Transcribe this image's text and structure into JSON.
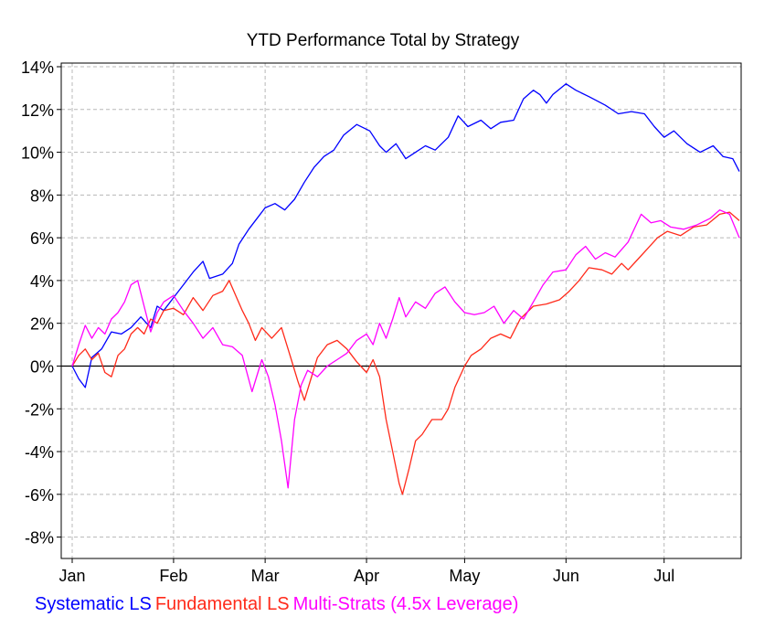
{
  "chart_data": {
    "type": "line",
    "title": "YTD Performance Total by Strategy",
    "xlabel": "",
    "ylabel": "",
    "x_domain": [
      "2019-01-01",
      "2019-07-24"
    ],
    "ylim": [
      -9,
      14
    ],
    "y_ticks": [
      14,
      12,
      10,
      8,
      6,
      4,
      2,
      0,
      -2,
      -4,
      -6,
      -8
    ],
    "y_tick_labels": [
      "14%",
      "12%",
      "10%",
      "8%",
      "6%",
      "4%",
      "2%",
      "0%",
      "-2%",
      "-4%",
      "-6%",
      "-8%"
    ],
    "x_ticks": [
      "2019-01-01",
      "2019-02-01",
      "2019-03-01",
      "2019-04-01",
      "2019-05-01",
      "2019-06-01",
      "2019-07-01"
    ],
    "x_tick_labels": [
      "Jan",
      "Feb",
      "Mar",
      "Apr",
      "May",
      "Jun",
      "Jul"
    ],
    "grid": true,
    "zero_line": true,
    "legend_position": "bottom-left",
    "series": [
      {
        "name": "Systematic LS",
        "color": "#0000ff",
        "points": [
          [
            "2019-01-01",
            0.0
          ],
          [
            "2019-01-03",
            -0.6
          ],
          [
            "2019-01-05",
            -1.0
          ],
          [
            "2019-01-07",
            0.4
          ],
          [
            "2019-01-10",
            0.8
          ],
          [
            "2019-01-13",
            1.6
          ],
          [
            "2019-01-16",
            1.5
          ],
          [
            "2019-01-19",
            1.8
          ],
          [
            "2019-01-22",
            2.3
          ],
          [
            "2019-01-25",
            1.8
          ],
          [
            "2019-01-27",
            2.8
          ],
          [
            "2019-01-29",
            2.6
          ],
          [
            "2019-02-01",
            3.2
          ],
          [
            "2019-02-04",
            3.8
          ],
          [
            "2019-02-07",
            4.4
          ],
          [
            "2019-02-10",
            4.9
          ],
          [
            "2019-02-12",
            4.1
          ],
          [
            "2019-02-16",
            4.3
          ],
          [
            "2019-02-19",
            4.8
          ],
          [
            "2019-02-21",
            5.7
          ],
          [
            "2019-02-24",
            6.4
          ],
          [
            "2019-02-27",
            7.0
          ],
          [
            "2019-03-01",
            7.4
          ],
          [
            "2019-03-04",
            7.6
          ],
          [
            "2019-03-07",
            7.3
          ],
          [
            "2019-03-10",
            7.8
          ],
          [
            "2019-03-13",
            8.6
          ],
          [
            "2019-03-16",
            9.3
          ],
          [
            "2019-03-19",
            9.8
          ],
          [
            "2019-03-22",
            10.1
          ],
          [
            "2019-03-25",
            10.8
          ],
          [
            "2019-03-29",
            11.3
          ],
          [
            "2019-04-02",
            11.0
          ],
          [
            "2019-04-05",
            10.3
          ],
          [
            "2019-04-07",
            10.0
          ],
          [
            "2019-04-10",
            10.4
          ],
          [
            "2019-04-13",
            9.7
          ],
          [
            "2019-04-16",
            10.0
          ],
          [
            "2019-04-19",
            10.3
          ],
          [
            "2019-04-22",
            10.1
          ],
          [
            "2019-04-26",
            10.7
          ],
          [
            "2019-04-29",
            11.7
          ],
          [
            "2019-05-02",
            11.2
          ],
          [
            "2019-05-06",
            11.5
          ],
          [
            "2019-05-09",
            11.1
          ],
          [
            "2019-05-12",
            11.4
          ],
          [
            "2019-05-16",
            11.5
          ],
          [
            "2019-05-19",
            12.5
          ],
          [
            "2019-05-22",
            12.9
          ],
          [
            "2019-05-24",
            12.7
          ],
          [
            "2019-05-26",
            12.3
          ],
          [
            "2019-05-28",
            12.7
          ],
          [
            "2019-06-01",
            13.2
          ],
          [
            "2019-06-04",
            12.9
          ],
          [
            "2019-06-08",
            12.6
          ],
          [
            "2019-06-13",
            12.2
          ],
          [
            "2019-06-17",
            11.8
          ],
          [
            "2019-06-21",
            11.9
          ],
          [
            "2019-06-25",
            11.8
          ],
          [
            "2019-06-28",
            11.2
          ],
          [
            "2019-07-01",
            10.7
          ],
          [
            "2019-07-04",
            11.0
          ],
          [
            "2019-07-08",
            10.4
          ],
          [
            "2019-07-12",
            10.0
          ],
          [
            "2019-07-16",
            10.3
          ],
          [
            "2019-07-19",
            9.8
          ],
          [
            "2019-07-22",
            9.7
          ],
          [
            "2019-07-24",
            9.1
          ]
        ]
      },
      {
        "name": "Fundamental LS",
        "color": "#ff2a1a",
        "points": [
          [
            "2019-01-01",
            0.0
          ],
          [
            "2019-01-03",
            0.5
          ],
          [
            "2019-01-05",
            0.8
          ],
          [
            "2019-01-07",
            0.3
          ],
          [
            "2019-01-09",
            0.6
          ],
          [
            "2019-01-11",
            -0.3
          ],
          [
            "2019-01-13",
            -0.5
          ],
          [
            "2019-01-15",
            0.5
          ],
          [
            "2019-01-17",
            0.8
          ],
          [
            "2019-01-19",
            1.5
          ],
          [
            "2019-01-21",
            1.8
          ],
          [
            "2019-01-23",
            1.5
          ],
          [
            "2019-01-25",
            2.2
          ],
          [
            "2019-01-27",
            2.0
          ],
          [
            "2019-01-29",
            2.6
          ],
          [
            "2019-02-01",
            2.7
          ],
          [
            "2019-02-04",
            2.4
          ],
          [
            "2019-02-07",
            3.2
          ],
          [
            "2019-02-10",
            2.6
          ],
          [
            "2019-02-13",
            3.3
          ],
          [
            "2019-02-16",
            3.5
          ],
          [
            "2019-02-18",
            4.0
          ],
          [
            "2019-02-20",
            3.3
          ],
          [
            "2019-02-22",
            2.6
          ],
          [
            "2019-02-24",
            2.0
          ],
          [
            "2019-02-26",
            1.2
          ],
          [
            "2019-02-28",
            1.8
          ],
          [
            "2019-03-03",
            1.3
          ],
          [
            "2019-03-06",
            1.8
          ],
          [
            "2019-03-09",
            0.3
          ],
          [
            "2019-03-11",
            -0.7
          ],
          [
            "2019-03-13",
            -1.6
          ],
          [
            "2019-03-15",
            -0.6
          ],
          [
            "2019-03-17",
            0.4
          ],
          [
            "2019-03-20",
            1.0
          ],
          [
            "2019-03-23",
            1.2
          ],
          [
            "2019-03-26",
            0.8
          ],
          [
            "2019-03-29",
            0.2
          ],
          [
            "2019-04-01",
            -0.3
          ],
          [
            "2019-04-03",
            0.3
          ],
          [
            "2019-04-05",
            -0.5
          ],
          [
            "2019-04-07",
            -2.5
          ],
          [
            "2019-04-09",
            -4.0
          ],
          [
            "2019-04-11",
            -5.5
          ],
          [
            "2019-04-12",
            -6.0
          ],
          [
            "2019-04-14",
            -4.8
          ],
          [
            "2019-04-16",
            -3.5
          ],
          [
            "2019-04-18",
            -3.2
          ],
          [
            "2019-04-21",
            -2.5
          ],
          [
            "2019-04-24",
            -2.5
          ],
          [
            "2019-04-26",
            -2.0
          ],
          [
            "2019-04-28",
            -1.0
          ],
          [
            "2019-05-01",
            0.0
          ],
          [
            "2019-05-03",
            0.5
          ],
          [
            "2019-05-06",
            0.8
          ],
          [
            "2019-05-09",
            1.3
          ],
          [
            "2019-05-12",
            1.5
          ],
          [
            "2019-05-15",
            1.3
          ],
          [
            "2019-05-18",
            2.2
          ],
          [
            "2019-05-22",
            2.8
          ],
          [
            "2019-05-26",
            2.9
          ],
          [
            "2019-05-30",
            3.1
          ],
          [
            "2019-06-02",
            3.5
          ],
          [
            "2019-06-05",
            4.0
          ],
          [
            "2019-06-08",
            4.6
          ],
          [
            "2019-06-12",
            4.5
          ],
          [
            "2019-06-15",
            4.3
          ],
          [
            "2019-06-18",
            4.8
          ],
          [
            "2019-06-20",
            4.5
          ],
          [
            "2019-06-23",
            5.0
          ],
          [
            "2019-06-26",
            5.5
          ],
          [
            "2019-06-29",
            6.0
          ],
          [
            "2019-07-02",
            6.3
          ],
          [
            "2019-07-06",
            6.1
          ],
          [
            "2019-07-10",
            6.5
          ],
          [
            "2019-07-14",
            6.6
          ],
          [
            "2019-07-18",
            7.1
          ],
          [
            "2019-07-21",
            7.2
          ],
          [
            "2019-07-24",
            6.8
          ]
        ]
      },
      {
        "name": "Multi-Strats (4.5x Leverage)",
        "color": "#ff00ff",
        "points": [
          [
            "2019-01-01",
            0.0
          ],
          [
            "2019-01-03",
            1.0
          ],
          [
            "2019-01-05",
            1.9
          ],
          [
            "2019-01-07",
            1.3
          ],
          [
            "2019-01-09",
            1.8
          ],
          [
            "2019-01-11",
            1.5
          ],
          [
            "2019-01-13",
            2.2
          ],
          [
            "2019-01-15",
            2.5
          ],
          [
            "2019-01-17",
            3.0
          ],
          [
            "2019-01-19",
            3.8
          ],
          [
            "2019-01-21",
            4.0
          ],
          [
            "2019-01-23",
            2.8
          ],
          [
            "2019-01-25",
            1.6
          ],
          [
            "2019-01-27",
            2.5
          ],
          [
            "2019-01-29",
            3.0
          ],
          [
            "2019-02-01",
            3.3
          ],
          [
            "2019-02-04",
            2.6
          ],
          [
            "2019-02-07",
            2.0
          ],
          [
            "2019-02-10",
            1.3
          ],
          [
            "2019-02-13",
            1.8
          ],
          [
            "2019-02-16",
            1.0
          ],
          [
            "2019-02-19",
            0.9
          ],
          [
            "2019-02-22",
            0.5
          ],
          [
            "2019-02-25",
            -1.2
          ],
          [
            "2019-02-28",
            0.3
          ],
          [
            "2019-03-02",
            -0.5
          ],
          [
            "2019-03-04",
            -1.8
          ],
          [
            "2019-03-06",
            -3.5
          ],
          [
            "2019-03-08",
            -5.7
          ],
          [
            "2019-03-10",
            -2.5
          ],
          [
            "2019-03-12",
            -0.9
          ],
          [
            "2019-03-14",
            -0.2
          ],
          [
            "2019-03-17",
            -0.5
          ],
          [
            "2019-03-20",
            0.0
          ],
          [
            "2019-03-23",
            0.3
          ],
          [
            "2019-03-26",
            0.6
          ],
          [
            "2019-03-29",
            1.2
          ],
          [
            "2019-04-01",
            1.5
          ],
          [
            "2019-04-03",
            1.0
          ],
          [
            "2019-04-05",
            2.0
          ],
          [
            "2019-04-07",
            1.3
          ],
          [
            "2019-04-09",
            2.2
          ],
          [
            "2019-04-11",
            3.2
          ],
          [
            "2019-04-13",
            2.3
          ],
          [
            "2019-04-16",
            3.0
          ],
          [
            "2019-04-19",
            2.7
          ],
          [
            "2019-04-22",
            3.4
          ],
          [
            "2019-04-25",
            3.7
          ],
          [
            "2019-04-28",
            3.0
          ],
          [
            "2019-05-01",
            2.5
          ],
          [
            "2019-05-04",
            2.4
          ],
          [
            "2019-05-07",
            2.5
          ],
          [
            "2019-05-10",
            2.8
          ],
          [
            "2019-05-13",
            2.0
          ],
          [
            "2019-05-16",
            2.6
          ],
          [
            "2019-05-19",
            2.2
          ],
          [
            "2019-05-22",
            3.0
          ],
          [
            "2019-05-25",
            3.8
          ],
          [
            "2019-05-28",
            4.4
          ],
          [
            "2019-06-01",
            4.5
          ],
          [
            "2019-06-04",
            5.2
          ],
          [
            "2019-06-07",
            5.6
          ],
          [
            "2019-06-10",
            5.0
          ],
          [
            "2019-06-13",
            5.3
          ],
          [
            "2019-06-16",
            5.1
          ],
          [
            "2019-06-20",
            5.8
          ],
          [
            "2019-06-24",
            7.1
          ],
          [
            "2019-06-27",
            6.7
          ],
          [
            "2019-06-30",
            6.8
          ],
          [
            "2019-07-03",
            6.5
          ],
          [
            "2019-07-07",
            6.4
          ],
          [
            "2019-07-11",
            6.6
          ],
          [
            "2019-07-15",
            6.9
          ],
          [
            "2019-07-18",
            7.3
          ],
          [
            "2019-07-21",
            7.1
          ],
          [
            "2019-07-24",
            6.0
          ]
        ]
      }
    ]
  }
}
